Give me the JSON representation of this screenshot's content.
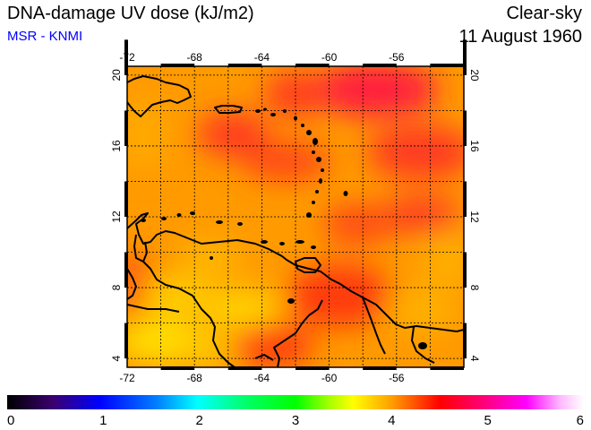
{
  "header": {
    "title": "DNA-damage UV dose (kJ/m2)",
    "subtitle": "MSR - KNMI",
    "scenario": "Clear-sky",
    "date": "11 August 1960"
  },
  "map": {
    "lon_ticks": [
      "-72",
      "-68",
      "-64",
      "-60",
      "-56"
    ],
    "lat_ticks": [
      "4",
      "8",
      "12",
      "16",
      "20"
    ],
    "lon_range": [
      -72,
      -52
    ],
    "lat_range": [
      3.5,
      20.5
    ],
    "grid": true
  },
  "colorbar": {
    "range": [
      0,
      6
    ],
    "tick_labels": [
      "0",
      "1",
      "2",
      "3",
      "4",
      "5",
      "6"
    ]
  },
  "colors": {
    "subtitle": "#0000ff",
    "field_base": "#ff9900",
    "field_high": "#ff2a2a",
    "field_low": "#ffdd00"
  }
}
